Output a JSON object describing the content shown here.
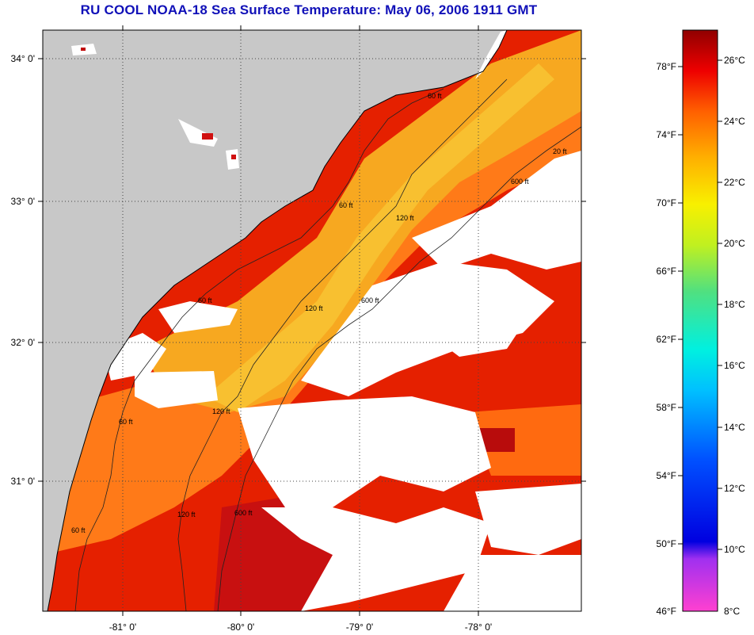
{
  "title": "RU COOL  NOAA-18  Sea Surface Temperature:  May 06, 2006 1911 GMT",
  "map": {
    "lat_labels": [
      "34° 0'",
      "33° 0'",
      "32° 0'",
      "31° 0'"
    ],
    "lon_labels": [
      "-81° 0'",
      "-80° 0'",
      "-79° 0'",
      "-78° 0'"
    ],
    "contour_labels": [
      "60 ft",
      "60 ft",
      "60 ft",
      "60 ft",
      "60 ft",
      "120 ft",
      "120 ft",
      "120 ft",
      "120 ft",
      "600 ft",
      "600 ft",
      "600 ft",
      "20 ft"
    ],
    "colors": {
      "land": "#c8c8c8",
      "cloud": "#ffffff",
      "warm": "#e52000",
      "mid": "#ff7a10",
      "cool": "#f7b020"
    }
  },
  "colorbar": {
    "fahrenheit_labels": [
      "78°F",
      "74°F",
      "70°F",
      "66°F",
      "62°F",
      "58°F",
      "54°F",
      "50°F",
      "46°F"
    ],
    "celsius_labels": [
      "26°C",
      "24°C",
      "22°C",
      "20°C",
      "18°C",
      "16°C",
      "14°C",
      "12°C",
      "10°C",
      "8°C"
    ]
  }
}
